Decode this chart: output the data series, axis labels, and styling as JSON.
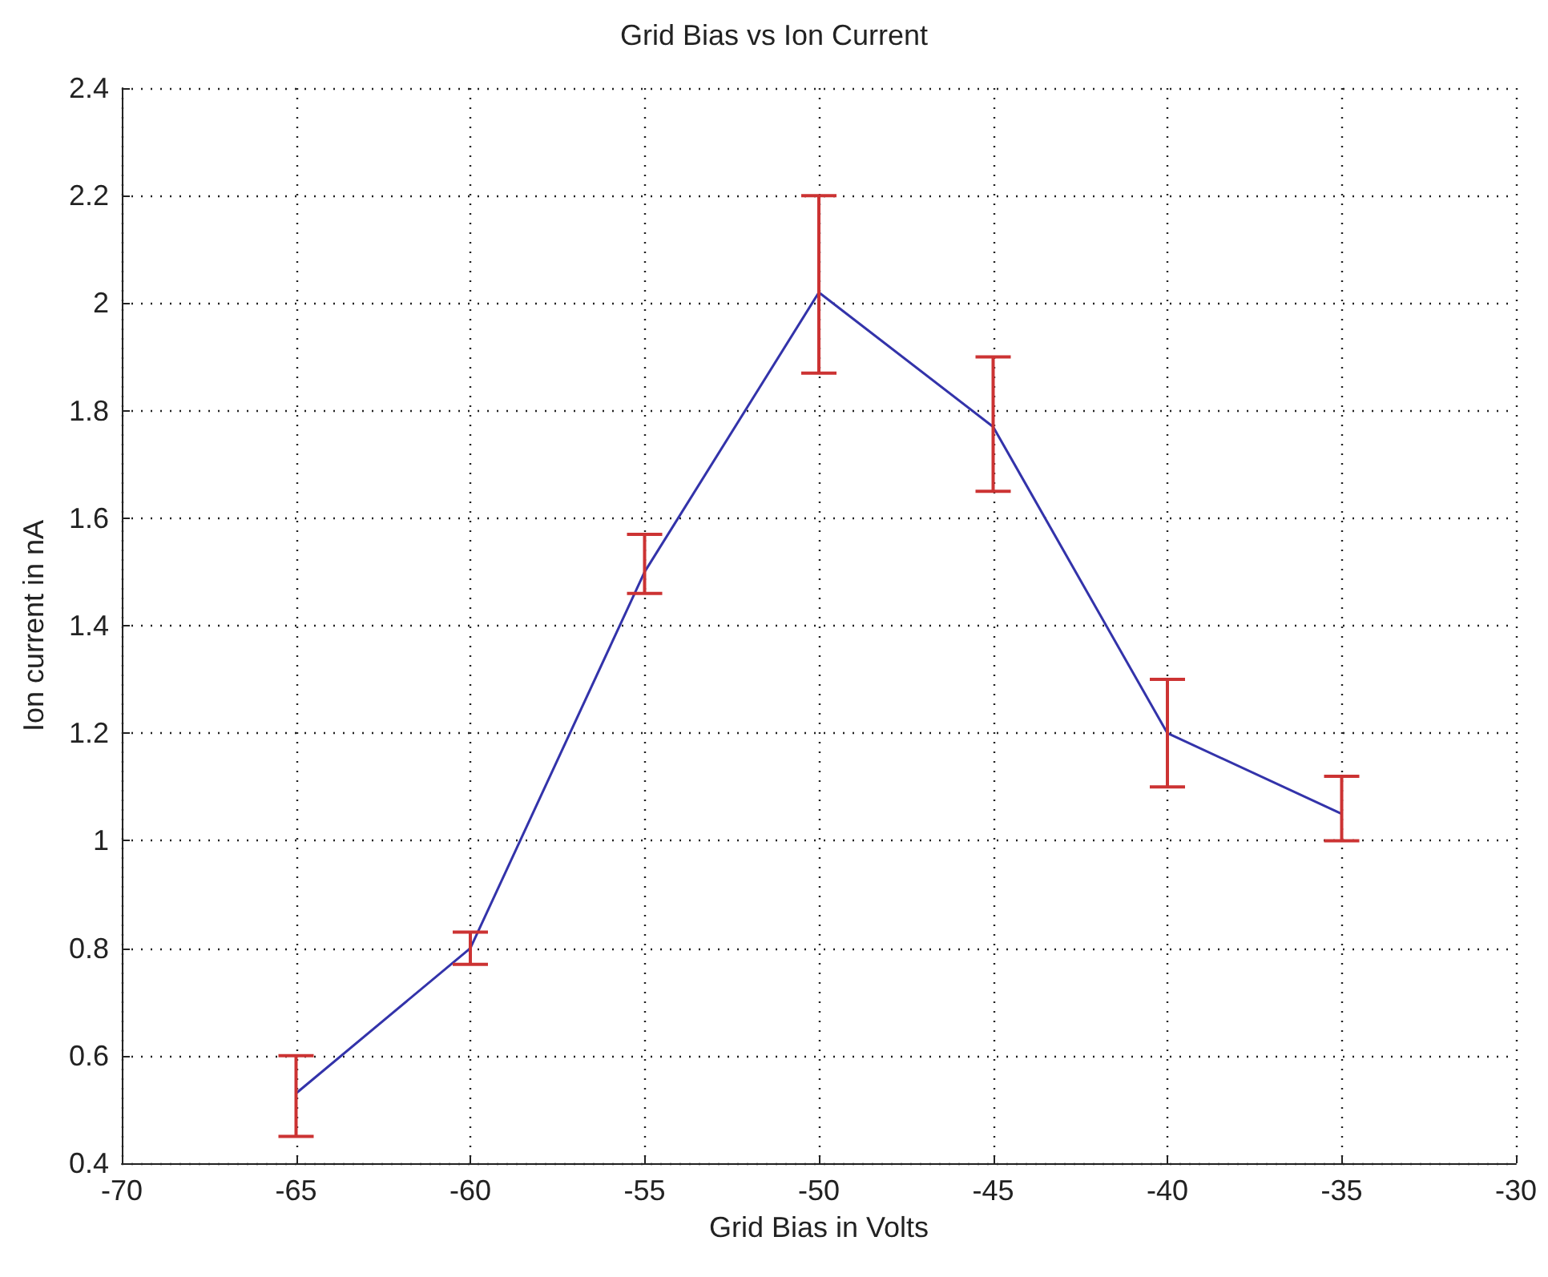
{
  "chart_data": {
    "type": "line",
    "title": "Grid Bias vs Ion Current",
    "xlabel": "Grid Bias in Volts",
    "ylabel": "Ion current in nA",
    "x": [
      -65,
      -60,
      -55,
      -50,
      -45,
      -40,
      -35
    ],
    "series": [
      {
        "color": "#3333aa",
        "values": [
          0.53,
          0.8,
          1.5,
          2.02,
          1.77,
          1.2,
          1.05
        ],
        "errors": [
          [
            0.45,
            0.6
          ],
          [
            0.77,
            0.83
          ],
          [
            1.46,
            1.57
          ],
          [
            1.87,
            2.2
          ],
          [
            1.65,
            1.9
          ],
          [
            1.1,
            1.3
          ],
          [
            1.0,
            1.12
          ]
        ]
      }
    ],
    "xlim": [
      -70,
      -30
    ],
    "xticks": [
      -70,
      -65,
      -60,
      -55,
      -50,
      -45,
      -40,
      -35,
      -30
    ],
    "ylim": [
      0.4,
      2.4
    ],
    "yticks": [
      0.4,
      0.6,
      0.8,
      1,
      1.2,
      1.4,
      1.6,
      1.8,
      2,
      2.2,
      2.4
    ],
    "grid": true,
    "marker": "none",
    "line_style": "solid"
  }
}
